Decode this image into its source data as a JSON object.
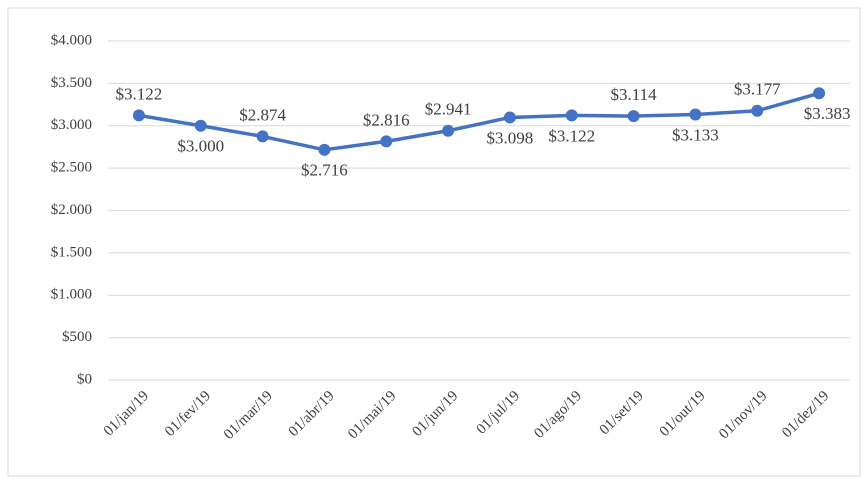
{
  "chart_data": {
    "type": "line",
    "categories": [
      "01/jan/19",
      "01/fev/19",
      "01/mar/19",
      "01/abr/19",
      "01/mai/19",
      "01/jun/19",
      "01/jul/19",
      "01/ago/19",
      "01/set/19",
      "01/out/19",
      "01/nov/19",
      "01/dez/19"
    ],
    "values": [
      3122,
      3000,
      2874,
      2716,
      2816,
      2941,
      3098,
      3122,
      3114,
      3133,
      3177,
      3383
    ],
    "value_labels": [
      "$3.122",
      "$3.000",
      "$2.874",
      "$2.716",
      "$2.816",
      "$2.941",
      "$3.098",
      "$3.122",
      "$3.114",
      "$3.133",
      "$3.177",
      "$3.383"
    ],
    "color": "#4472c4",
    "ylim": [
      0,
      4000
    ],
    "yticks": [
      {
        "value": 0,
        "label": "$0"
      },
      {
        "value": 500,
        "label": "$500"
      },
      {
        "value": 1000,
        "label": "$1.000"
      },
      {
        "value": 1500,
        "label": "$1.500"
      },
      {
        "value": 2000,
        "label": "$2.000"
      },
      {
        "value": 2500,
        "label": "$2.500"
      },
      {
        "value": 3000,
        "label": "$3.000"
      },
      {
        "value": 3500,
        "label": "$3.500"
      },
      {
        "value": 4000,
        "label": "$4.000"
      }
    ],
    "grid": true
  }
}
